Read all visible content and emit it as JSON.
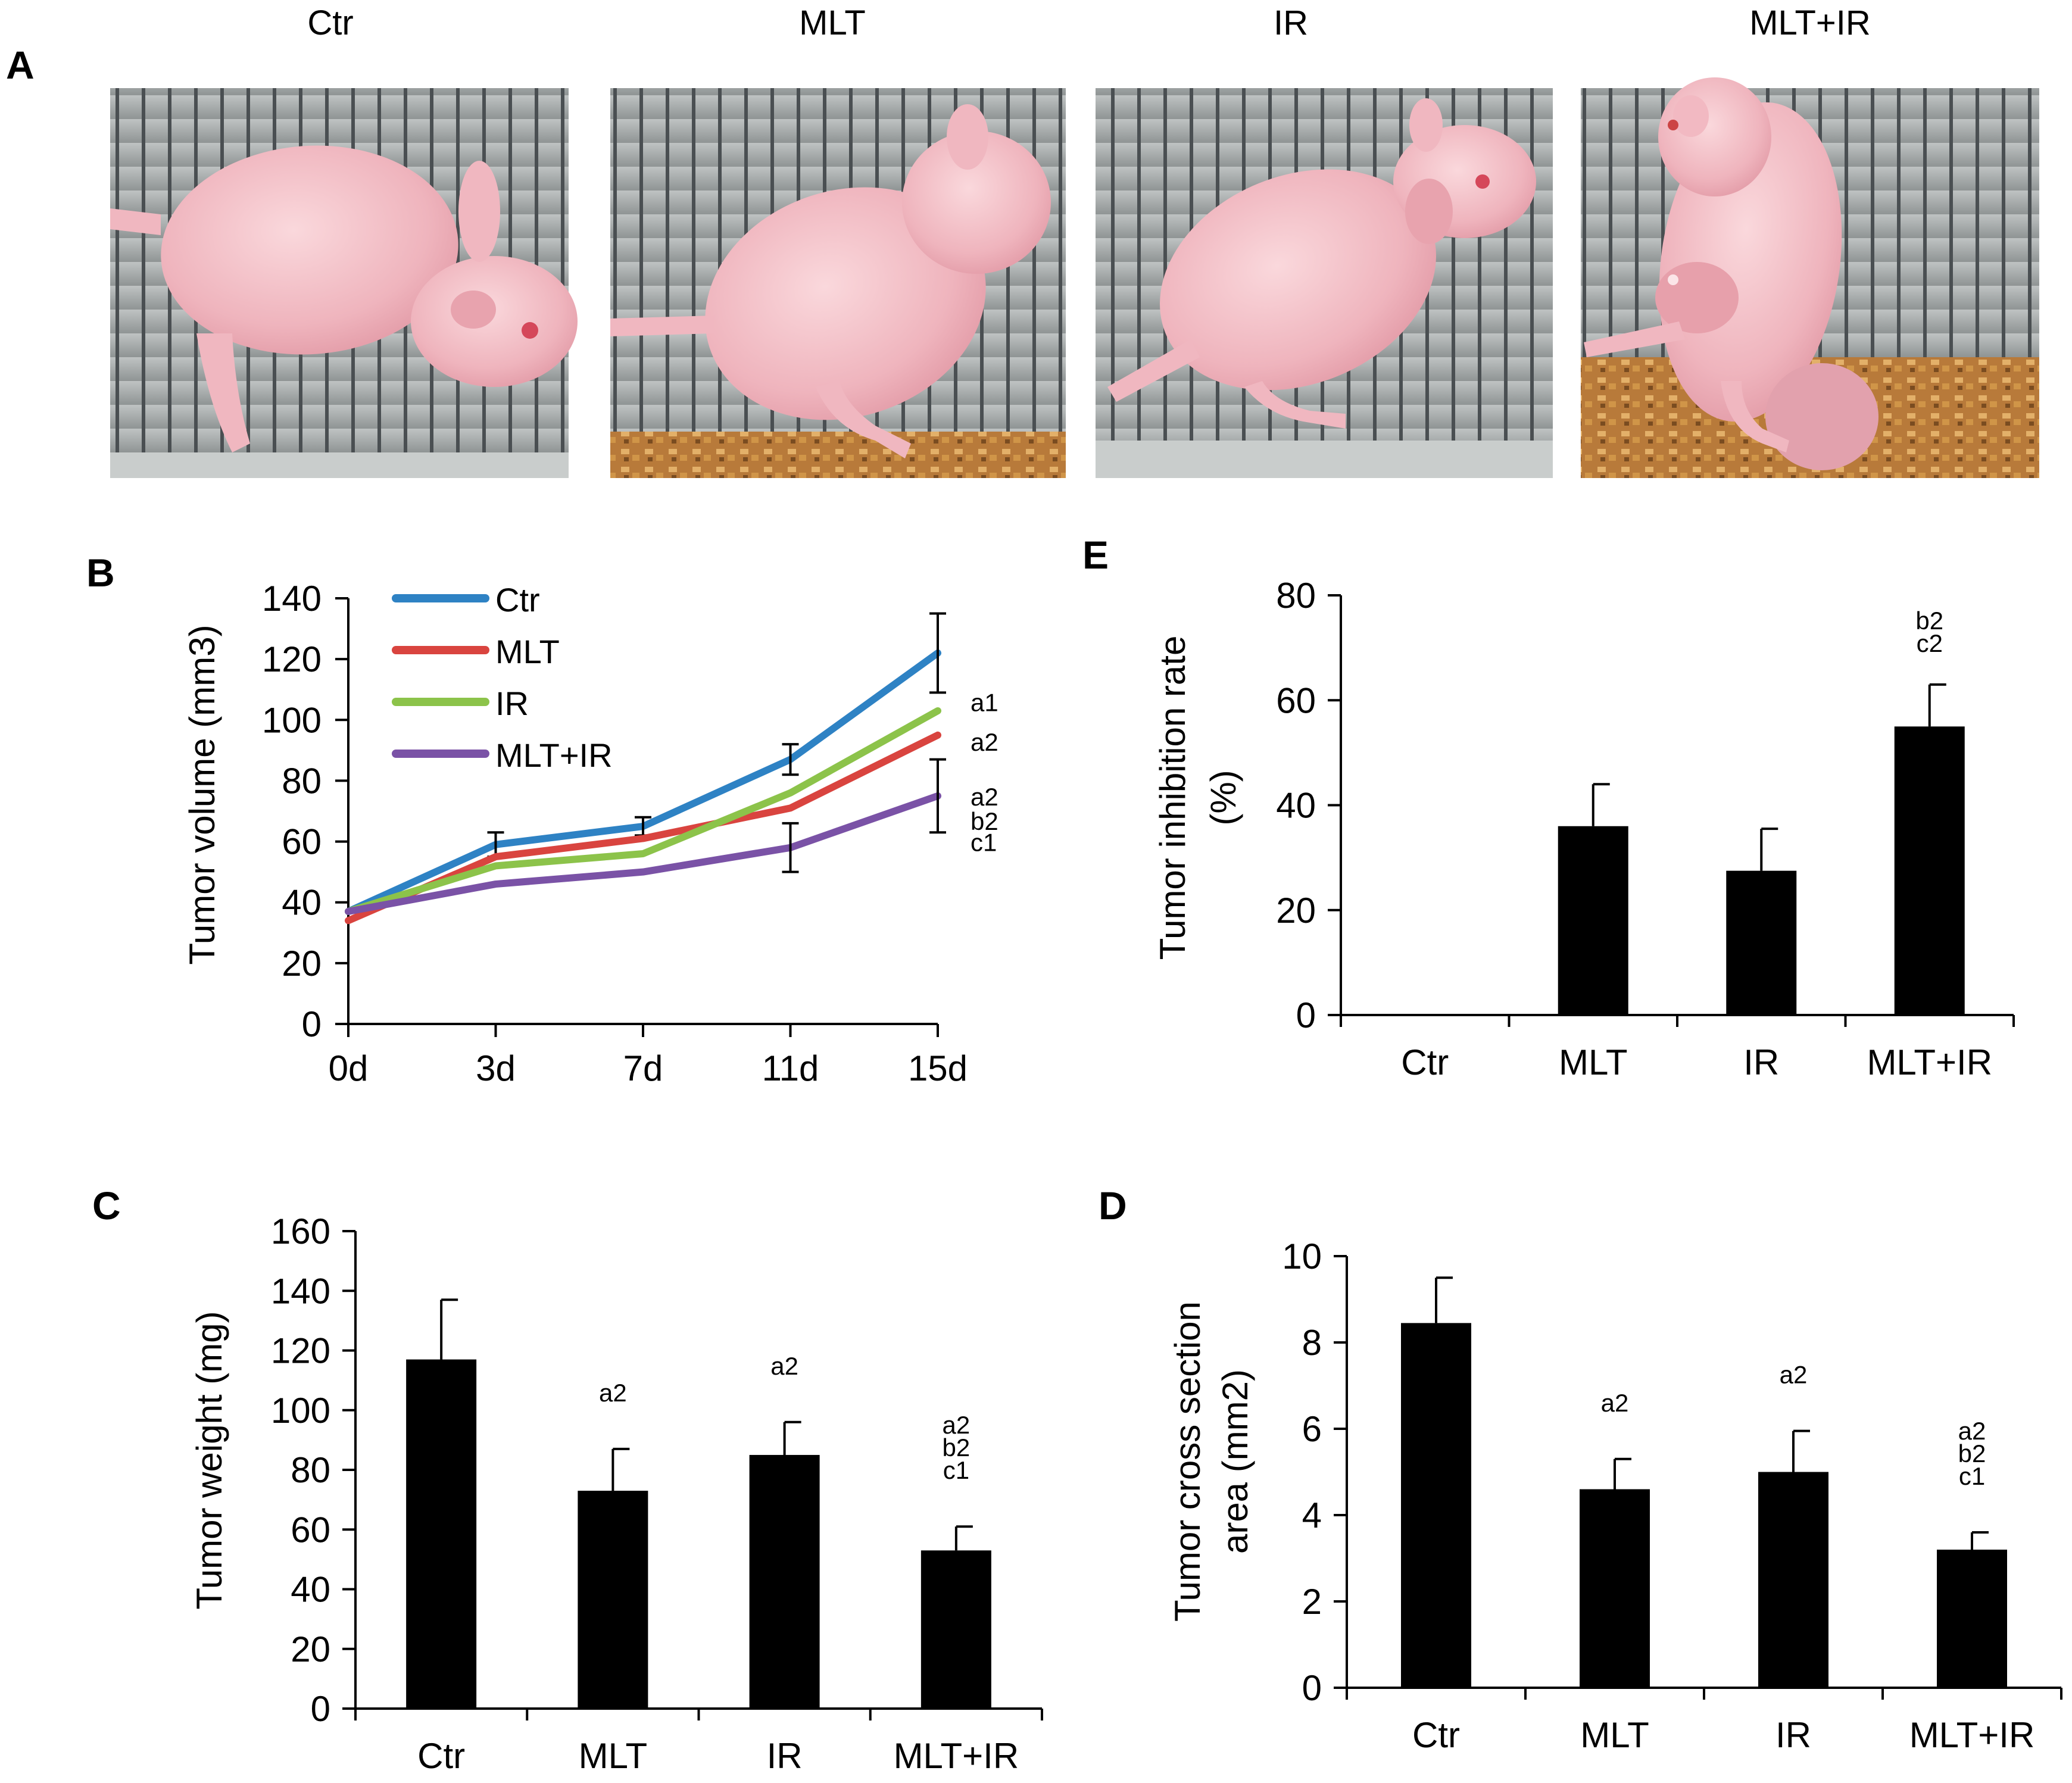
{
  "panel_labels": {
    "a": "A",
    "b": "B",
    "c": "C",
    "d": "D",
    "e": "E"
  },
  "photos": [
    {
      "label": "Ctr"
    },
    {
      "label": "MLT"
    },
    {
      "label": "IR"
    },
    {
      "label": "MLT+IR"
    }
  ],
  "chart_data": [
    {
      "id": "B",
      "type": "line",
      "title": "",
      "xlabel": "",
      "ylabel": "Tumor volume (mm3)",
      "categories": [
        "0d",
        "3d",
        "7d",
        "11d",
        "15d"
      ],
      "ylim": [
        0,
        140
      ],
      "yticks": [
        0,
        20,
        40,
        60,
        80,
        100,
        120,
        140
      ],
      "legend": "top-left",
      "series": [
        {
          "name": "Ctr",
          "color": "#2e82c4",
          "values": [
            37,
            59,
            65,
            87,
            122
          ],
          "errors": [
            0,
            4,
            3,
            5,
            13
          ]
        },
        {
          "name": "MLT",
          "color": "#d9443f",
          "values": [
            34,
            55,
            61,
            71,
            95
          ],
          "errors": [
            0,
            0,
            0,
            0,
            0
          ]
        },
        {
          "name": "IR",
          "color": "#8cc34a",
          "values": [
            37,
            52,
            56,
            76,
            103
          ],
          "errors": [
            0,
            0,
            0,
            0,
            0
          ]
        },
        {
          "name": "MLT+IR",
          "color": "#7a52a6",
          "values": [
            37,
            46,
            50,
            58,
            75
          ],
          "errors": [
            0,
            0,
            0,
            8,
            12
          ]
        }
      ],
      "annotations": [
        {
          "text": "a1",
          "y": 106
        },
        {
          "text": "a2",
          "y": 93
        },
        {
          "text": "a2",
          "y": 75
        },
        {
          "text": "b2",
          "y": 67
        },
        {
          "text": "c1",
          "y": 60
        }
      ]
    },
    {
      "id": "E",
      "type": "bar",
      "title": "",
      "xlabel": "",
      "ylabel": "Tumor inhibition rate (%)",
      "ylabel_lines": [
        "Tumor inhibition rate",
        "(%)"
      ],
      "categories": [
        "Ctr",
        "MLT",
        "IR",
        "MLT+IR"
      ],
      "values": [
        0,
        36,
        27.5,
        55
      ],
      "errors": [
        0,
        8,
        8,
        8
      ],
      "ylim": [
        0,
        80
      ],
      "yticks": [
        0,
        20,
        40,
        60,
        80
      ],
      "annotations": [
        [],
        [],
        [],
        [
          "b2",
          "c2"
        ]
      ]
    },
    {
      "id": "C",
      "type": "bar",
      "title": "",
      "xlabel": "",
      "ylabel": "Tumor weight (mg)",
      "categories": [
        "Ctr",
        "MLT",
        "IR",
        "MLT+IR"
      ],
      "values": [
        117,
        73,
        85,
        53
      ],
      "errors": [
        20,
        14,
        11,
        8
      ],
      "ylim": [
        0,
        160
      ],
      "yticks": [
        0,
        20,
        40,
        60,
        80,
        100,
        120,
        140,
        160
      ],
      "annotations": [
        [],
        [
          "a2"
        ],
        [
          "a2"
        ],
        [
          "a2",
          "b2",
          "c1"
        ]
      ]
    },
    {
      "id": "D",
      "type": "bar",
      "title": "",
      "xlabel": "",
      "ylabel": "Tumor cross section area (mm2)",
      "ylabel_lines": [
        "Tumor cross section",
        "area (mm2)"
      ],
      "categories": [
        "Ctr",
        "MLT",
        "IR",
        "MLT+IR"
      ],
      "values": [
        8.45,
        4.6,
        5.0,
        3.2
      ],
      "errors": [
        1.05,
        0.7,
        0.95,
        0.4
      ],
      "ylim": [
        0,
        10
      ],
      "yticks": [
        0,
        2,
        4,
        6,
        8,
        10
      ],
      "annotations": [
        [],
        [
          "a2"
        ],
        [
          "a2"
        ],
        [
          "a2",
          "b2",
          "c1"
        ]
      ]
    }
  ]
}
